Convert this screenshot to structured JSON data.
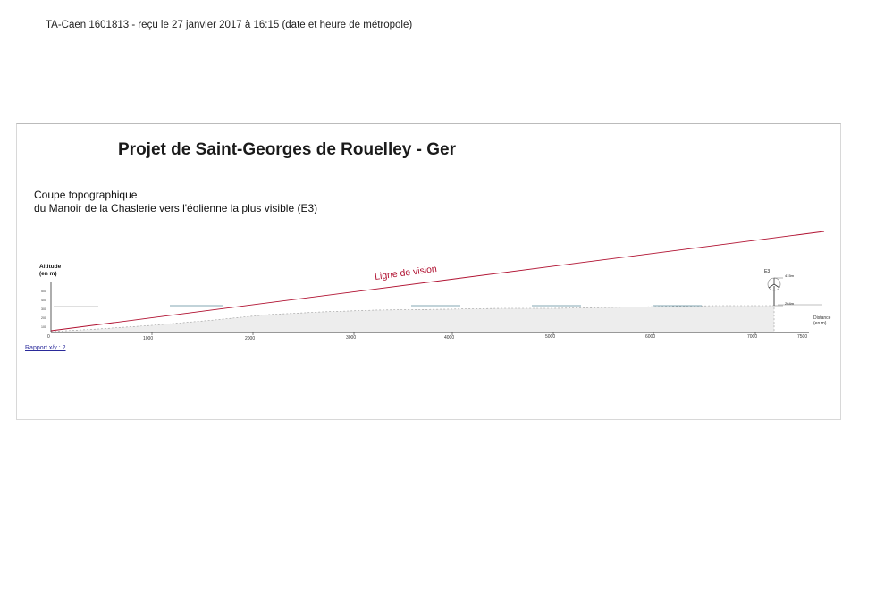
{
  "header": "TA-Caen 1601813 - reçu le 27 janvier 2017 à 16:15 (date et heure de métropole)",
  "title": "Projet de Saint-Georges de Rouelley - Ger",
  "subtitle_line1": "Coupe topographique",
  "subtitle_line2": "du Manoir de la Chaslerie vers l'éolienne la plus visible (E3)",
  "altitude_label": "Altitude",
  "altitude_unit": "(en m)",
  "distance_label": "Distance",
  "distance_unit": "(en m)",
  "vision_line_label": "Ligne de vision",
  "turbine_label": "E3",
  "turbine_top_label": "415m",
  "turbine_base_label": "264m",
  "rapport": "Rapport x/y : 2",
  "x_ticks": [
    "0",
    "1000",
    "2000",
    "3000",
    "4000",
    "5000",
    "6000",
    "7000",
    "7500"
  ],
  "y_ticks": [
    "500",
    "400",
    "300",
    "200",
    "100"
  ],
  "colors": {
    "vision_line": "#b01030",
    "terrain_fill": "#e8e8e8",
    "axis": "#333333"
  }
}
